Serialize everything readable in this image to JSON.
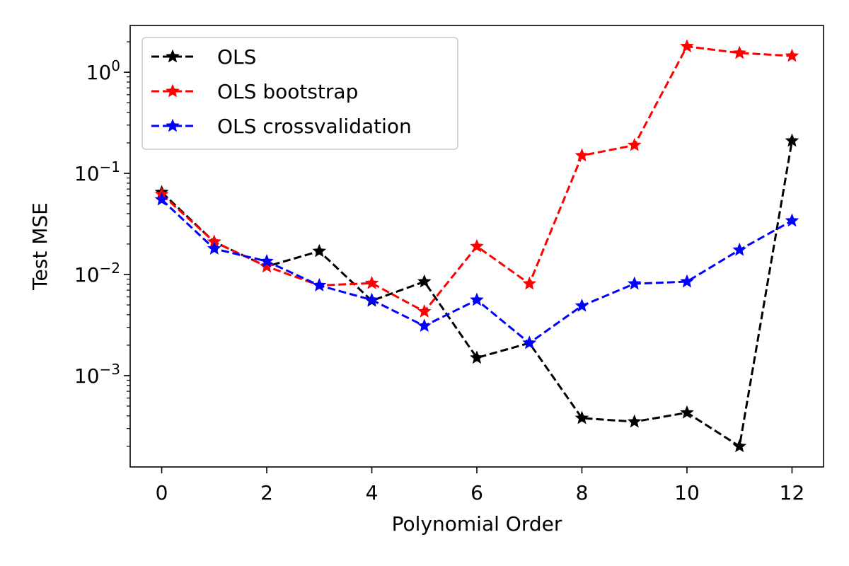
{
  "chart_data": {
    "type": "line",
    "xlabel": "Polynomial Order",
    "ylabel": "Test MSE",
    "yscale": "log",
    "xlim": [
      -0.6,
      12.6
    ],
    "ylim": [
      0.000125,
      2.9
    ],
    "grid": false,
    "legend_position": "top-left",
    "x_ticks": [
      0,
      2,
      4,
      6,
      8,
      10,
      12
    ],
    "x_tick_labels": [
      "0",
      "2",
      "4",
      "6",
      "8",
      "10",
      "12"
    ],
    "y_ticks": [
      0.001,
      0.01,
      0.1,
      1
    ],
    "y_tick_labels": [
      {
        "base": "10",
        "exp": "−3"
      },
      {
        "base": "10",
        "exp": "−2"
      },
      {
        "base": "10",
        "exp": "−1"
      },
      {
        "base": "10",
        "exp": "0"
      }
    ],
    "x": [
      0,
      1,
      2,
      3,
      4,
      5,
      6,
      7,
      8,
      9,
      10,
      11,
      12
    ],
    "series": [
      {
        "name": "OLS",
        "color": "#000000",
        "line_style": "dashed",
        "marker": "star",
        "values": [
          0.065,
          0.021,
          0.012,
          0.017,
          0.0055,
          0.0085,
          0.0015,
          0.0021,
          0.00038,
          0.00035,
          0.00043,
          0.0002,
          0.21
        ]
      },
      {
        "name": "OLS bootstrap",
        "color": "#ff0000",
        "line_style": "dashed",
        "marker": "star",
        "values": [
          0.062,
          0.021,
          0.012,
          0.0078,
          0.0082,
          0.0043,
          0.019,
          0.0081,
          0.15,
          0.19,
          1.8,
          1.55,
          1.45
        ]
      },
      {
        "name": "OLS crossvalidation",
        "color": "#0000ff",
        "line_style": "dashed",
        "marker": "star",
        "values": [
          0.055,
          0.018,
          0.0135,
          0.0078,
          0.0056,
          0.0031,
          0.0056,
          0.0021,
          0.0049,
          0.0081,
          0.0085,
          0.0175,
          0.034
        ]
      }
    ]
  }
}
